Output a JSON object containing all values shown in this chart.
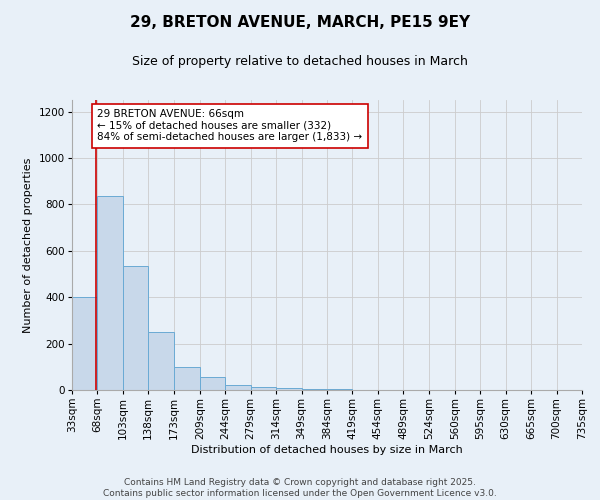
{
  "title1": "29, BRETON AVENUE, MARCH, PE15 9EY",
  "title2": "Size of property relative to detached houses in March",
  "xlabel": "Distribution of detached houses by size in March",
  "ylabel": "Number of detached properties",
  "bin_edges": [
    33,
    68,
    103,
    138,
    173,
    209,
    244,
    279,
    314,
    349,
    384,
    419,
    454,
    489,
    524,
    560,
    595,
    630,
    665,
    700,
    735
  ],
  "bar_heights": [
    400,
    835,
    535,
    248,
    100,
    58,
    23,
    15,
    8,
    5,
    3,
    2,
    1,
    1,
    1,
    1,
    0,
    0,
    0,
    0
  ],
  "bar_color": "#c8d8ea",
  "bar_edgecolor": "#6aaad4",
  "vline_x": 66,
  "vline_color": "#cc0000",
  "annotation_text": "29 BRETON AVENUE: 66sqm\n← 15% of detached houses are smaller (332)\n84% of semi-detached houses are larger (1,833) →",
  "annotation_box_color": "#ffffff",
  "annotation_border_color": "#cc0000",
  "ylim": [
    0,
    1250
  ],
  "yticks": [
    0,
    200,
    400,
    600,
    800,
    1000,
    1200
  ],
  "grid_color": "#cccccc",
  "background_color": "#e8f0f8",
  "footer_text": "Contains HM Land Registry data © Crown copyright and database right 2025.\nContains public sector information licensed under the Open Government Licence v3.0.",
  "title1_fontsize": 11,
  "title2_fontsize": 9,
  "axis_label_fontsize": 8,
  "tick_fontsize": 7.5,
  "annotation_fontsize": 7.5,
  "footer_fontsize": 6.5
}
